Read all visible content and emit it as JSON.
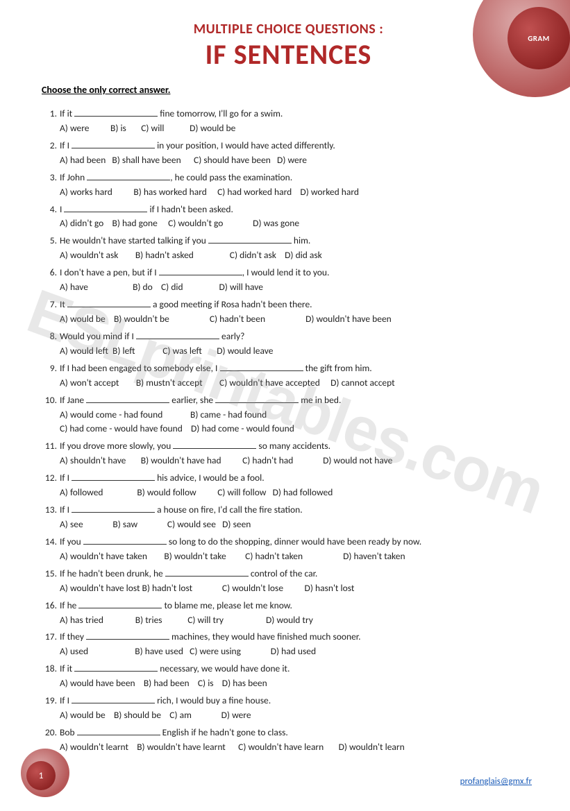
{
  "badge": {
    "label": "GRAM"
  },
  "header": {
    "subtitle": "MULTIPLE CHOICE QUESTIONS :",
    "title": "IF SENTENCES"
  },
  "instruction": "Choose the only correct answer.",
  "watermark": "ESLprintables.com",
  "footer": {
    "email": "profanglais@gmx.fr"
  },
  "page_number": "1",
  "blank": "________________",
  "questions": [
    {
      "n": "1.",
      "pre": "If it ",
      "post": " fine tomorrow, I'll go for a swim.",
      "opts": "A) were          B) is       C) will            D) would be"
    },
    {
      "n": "2.",
      "pre": "If I ",
      "post": " in your position, I would have acted differently.",
      "opts": "A) had been   B) shall have been      C) should have been   D) were"
    },
    {
      "n": "3.",
      "pre": "If John ",
      "post": ", he could pass the examination.",
      "opts": "A) works hard          B) has worked hard     C) had worked hard    D) worked hard"
    },
    {
      "n": "4.",
      "pre": "I ",
      "post": " if I hadn't been asked.",
      "opts": "A) didn't go    B) had gone     C) wouldn't go              D) was gone"
    },
    {
      "n": "5.",
      "pre": "He wouldn't have started talking if you ",
      "post": " him.",
      "opts": "A) wouldn't ask        B) hadn't asked                 C) didn't ask    D) did ask"
    },
    {
      "n": "6.",
      "pre": "I don't have a pen, but if I ",
      "post": ",  I would lend it to you.",
      "opts": "A) have                     B) do    C) did                 D) will have"
    },
    {
      "n": "7.",
      "pre": "It ",
      "post": " a good meeting if Rosa hadn't been there.",
      "opts": "A) would be    B) wouldn't be                   C) hadn't been                   D) wouldn't have been"
    },
    {
      "n": "8.",
      "pre": "Would you mind if I ",
      "post": " early?",
      "opts": "A) would left  B) left             C) was left       D) would leave"
    },
    {
      "n": "9.",
      "pre": "If I had been engaged to somebody else,  I ",
      "post": " the gift from him.",
      "opts": "A) won't accept        B) mustn't accept        C) wouldn't have accepted     D) cannot accept"
    },
    {
      "n": "10.",
      "pre": "If Jane ",
      "mid": " earlier, she ",
      "post": " me in bed.",
      "opts": "A) would come - had found             B) came - had found",
      "opts2": "C) had come - would have found    D) had come - would found"
    },
    {
      "n": "11.",
      "pre": "If you drove more slowly, you ",
      "post": " so many accidents.",
      "opts": "A) shouldn't have       B) wouldn't have had          C) hadn't had              D) would not have"
    },
    {
      "n": "12.",
      "pre": "If I ",
      "post": " his advice, I would be a fool.",
      "opts": "A) followed                B) would follow          C) will follow   D) had followed"
    },
    {
      "n": "13.",
      "pre": "If I ",
      "post": " a house on fire, I'd call the fire station.",
      "opts": "A) see              B) saw              C) would see   D) seen"
    },
    {
      "n": "14.",
      "pre": "If you ",
      "post": " so long to do the shopping, dinner would have been ready by now.",
      "opts": "A) wouldn't have taken        B) wouldn't take         C) hadn't taken                   D) haven't taken"
    },
    {
      "n": "15.",
      "pre": "If he hadn't been drunk, he ",
      "post": " control of the car.",
      "opts": "A) wouldn't have lost B) hadn't lost              C) wouldn't lose          D) hasn't lost"
    },
    {
      "n": "16.",
      "pre": "If he ",
      "post": " to blame me, please let me know.",
      "opts": "A) has tried               B) tries            C) will try                    D) would try"
    },
    {
      "n": "17.",
      "pre": "If they ",
      "post": " machines, they would have finished much sooner.",
      "opts": "A) used                      B) have used   C) were using              D) had used"
    },
    {
      "n": "18.",
      "pre": "If it ",
      "post": " necessary, we would have done it.",
      "opts": "A) would have been    B) had been    C) is    D) has been"
    },
    {
      "n": "19.",
      "pre": "If I ",
      "post": " rich, I would buy a fine house.",
      "opts": "A) would be    B) should be    C) am              D) were"
    },
    {
      "n": "20.",
      "pre": "Bob ",
      "post": " English if he hadn't gone to class.",
      "opts": "A) wouldn't learnt    B) wouldn't have learnt      C) wouldn't have learn       D) wouldn't learn"
    }
  ]
}
